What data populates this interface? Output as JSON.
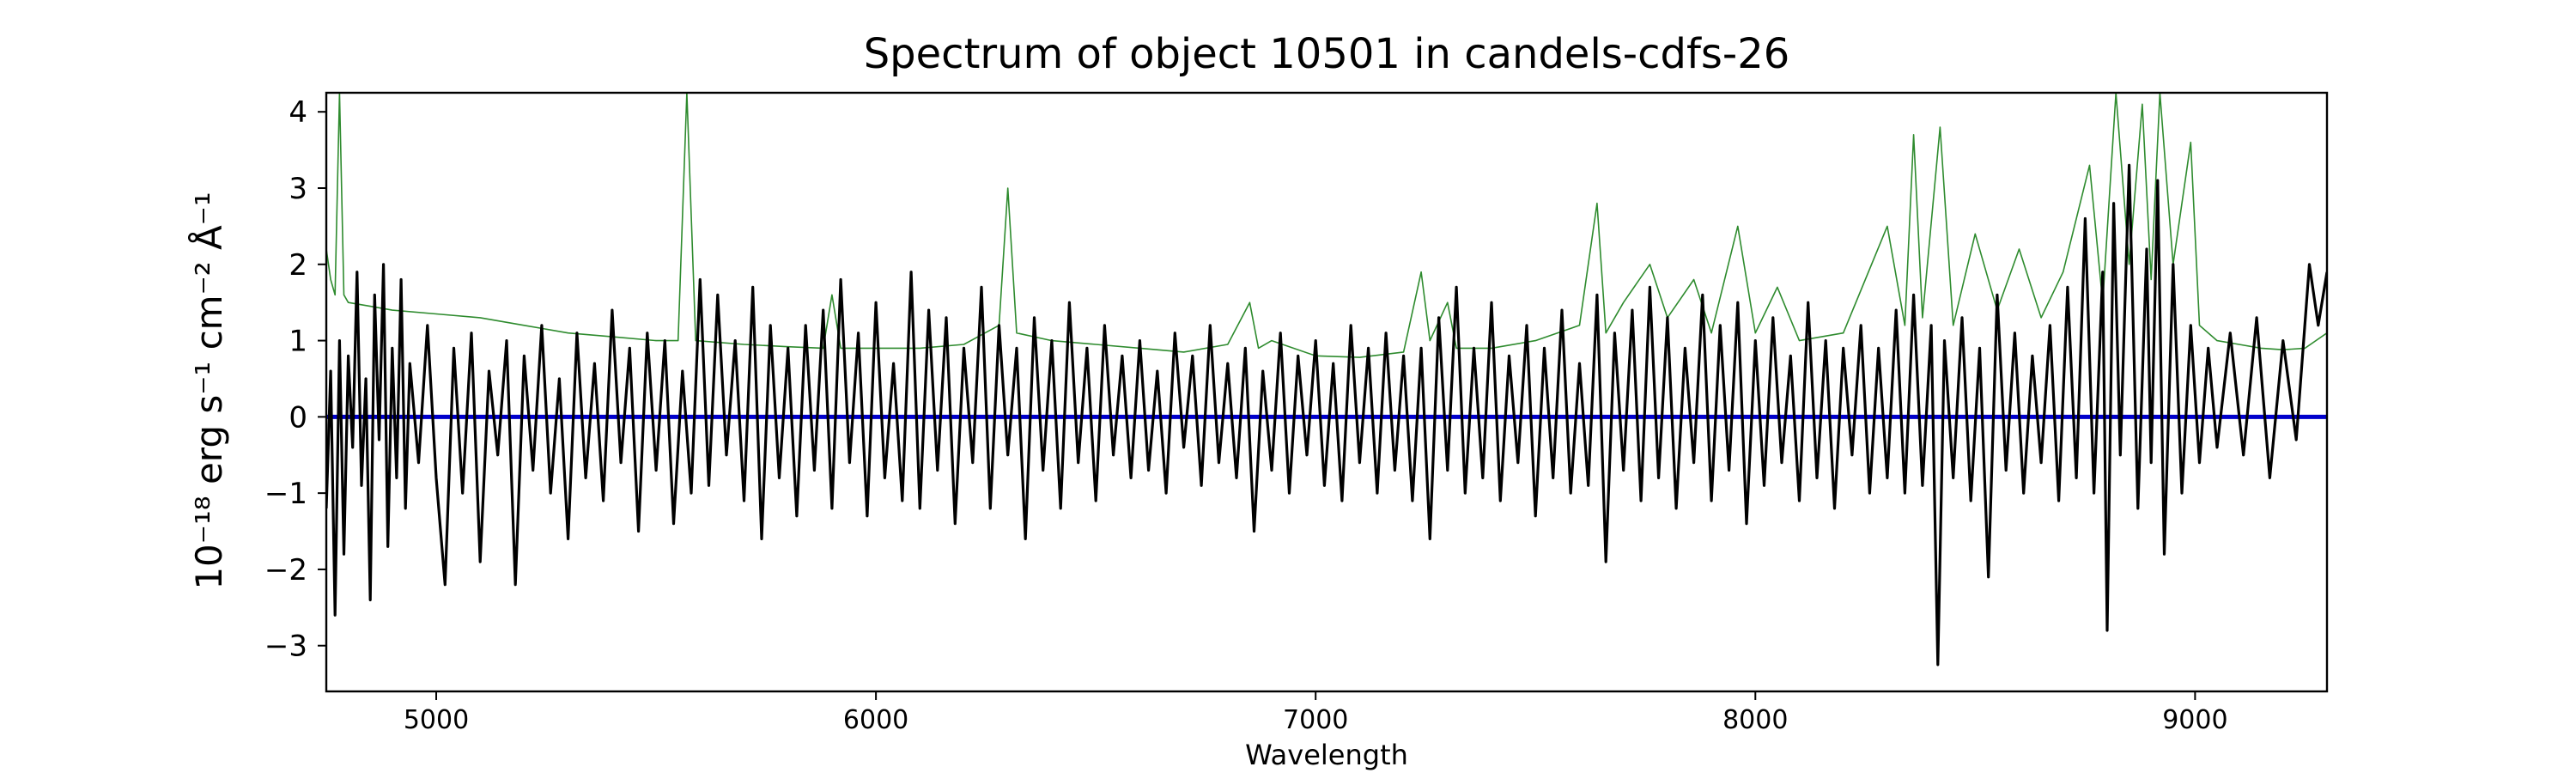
{
  "chart_data": {
    "type": "line",
    "title": "Spectrum of object 10501 in candels-cdfs-26",
    "xlabel": "Wavelength",
    "ylabel": "10⁻¹⁸ erg s⁻¹ cm⁻² Å⁻¹",
    "xlim": [
      4750,
      9300
    ],
    "ylim": [
      -3.6,
      4.25
    ],
    "x_ticks": [
      5000,
      6000,
      7000,
      8000,
      9000
    ],
    "y_ticks": [
      -3,
      -2,
      -1,
      0,
      1,
      2,
      3,
      4
    ],
    "grid": false,
    "zero_line": {
      "y": 0,
      "color": "#0000cc"
    },
    "series": [
      {
        "role": "flux",
        "color": "#000000",
        "points": [
          [
            4750,
            -1.2
          ],
          [
            4760,
            0.6
          ],
          [
            4770,
            -2.6
          ],
          [
            4780,
            1.0
          ],
          [
            4790,
            -1.8
          ],
          [
            4800,
            0.8
          ],
          [
            4810,
            -0.4
          ],
          [
            4820,
            1.9
          ],
          [
            4830,
            -0.9
          ],
          [
            4840,
            0.5
          ],
          [
            4850,
            -2.4
          ],
          [
            4860,
            1.6
          ],
          [
            4870,
            -0.3
          ],
          [
            4880,
            2.0
          ],
          [
            4890,
            -1.7
          ],
          [
            4900,
            0.9
          ],
          [
            4910,
            -0.8
          ],
          [
            4920,
            1.8
          ],
          [
            4930,
            -1.2
          ],
          [
            4940,
            0.7
          ],
          [
            4960,
            -0.6
          ],
          [
            4980,
            1.2
          ],
          [
            5000,
            -0.8
          ],
          [
            5020,
            -2.2
          ],
          [
            5040,
            0.9
          ],
          [
            5060,
            -1.0
          ],
          [
            5080,
            1.1
          ],
          [
            5100,
            -1.9
          ],
          [
            5120,
            0.6
          ],
          [
            5140,
            -0.5
          ],
          [
            5160,
            1.0
          ],
          [
            5180,
            -2.2
          ],
          [
            5200,
            0.8
          ],
          [
            5220,
            -0.7
          ],
          [
            5240,
            1.2
          ],
          [
            5260,
            -1.0
          ],
          [
            5280,
            0.5
          ],
          [
            5300,
            -1.6
          ],
          [
            5320,
            1.1
          ],
          [
            5340,
            -0.8
          ],
          [
            5360,
            0.7
          ],
          [
            5380,
            -1.1
          ],
          [
            5400,
            1.4
          ],
          [
            5420,
            -0.6
          ],
          [
            5440,
            0.9
          ],
          [
            5460,
            -1.5
          ],
          [
            5480,
            1.1
          ],
          [
            5500,
            -0.7
          ],
          [
            5520,
            1.0
          ],
          [
            5540,
            -1.4
          ],
          [
            5560,
            0.6
          ],
          [
            5580,
            -1.0
          ],
          [
            5600,
            1.8
          ],
          [
            5620,
            -0.9
          ],
          [
            5640,
            1.6
          ],
          [
            5660,
            -0.5
          ],
          [
            5680,
            1.0
          ],
          [
            5700,
            -1.1
          ],
          [
            5720,
            1.7
          ],
          [
            5740,
            -1.6
          ],
          [
            5760,
            1.2
          ],
          [
            5780,
            -0.8
          ],
          [
            5800,
            0.9
          ],
          [
            5820,
            -1.3
          ],
          [
            5840,
            1.2
          ],
          [
            5860,
            -0.7
          ],
          [
            5880,
            1.4
          ],
          [
            5900,
            -1.2
          ],
          [
            5920,
            1.8
          ],
          [
            5940,
            -0.6
          ],
          [
            5960,
            1.1
          ],
          [
            5980,
            -1.3
          ],
          [
            6000,
            1.5
          ],
          [
            6020,
            -0.8
          ],
          [
            6040,
            0.7
          ],
          [
            6060,
            -1.1
          ],
          [
            6080,
            1.9
          ],
          [
            6100,
            -1.2
          ],
          [
            6120,
            1.4
          ],
          [
            6140,
            -0.7
          ],
          [
            6160,
            1.3
          ],
          [
            6180,
            -1.4
          ],
          [
            6200,
            0.9
          ],
          [
            6220,
            -0.6
          ],
          [
            6240,
            1.7
          ],
          [
            6260,
            -1.2
          ],
          [
            6280,
            1.2
          ],
          [
            6300,
            -0.5
          ],
          [
            6320,
            0.9
          ],
          [
            6340,
            -1.6
          ],
          [
            6360,
            1.3
          ],
          [
            6380,
            -0.7
          ],
          [
            6400,
            1.0
          ],
          [
            6420,
            -1.2
          ],
          [
            6440,
            1.5
          ],
          [
            6460,
            -0.6
          ],
          [
            6480,
            0.9
          ],
          [
            6500,
            -1.1
          ],
          [
            6520,
            1.2
          ],
          [
            6540,
            -0.5
          ],
          [
            6560,
            0.8
          ],
          [
            6580,
            -0.8
          ],
          [
            6600,
            1.0
          ],
          [
            6620,
            -0.7
          ],
          [
            6640,
            0.6
          ],
          [
            6660,
            -1.0
          ],
          [
            6680,
            1.1
          ],
          [
            6700,
            -0.4
          ],
          [
            6720,
            0.8
          ],
          [
            6740,
            -0.9
          ],
          [
            6760,
            1.2
          ],
          [
            6780,
            -0.6
          ],
          [
            6800,
            0.7
          ],
          [
            6820,
            -0.8
          ],
          [
            6840,
            0.9
          ],
          [
            6860,
            -1.5
          ],
          [
            6880,
            0.6
          ],
          [
            6900,
            -0.7
          ],
          [
            6920,
            1.1
          ],
          [
            6940,
            -1.0
          ],
          [
            6960,
            0.8
          ],
          [
            6980,
            -0.5
          ],
          [
            7000,
            1.0
          ],
          [
            7020,
            -0.9
          ],
          [
            7040,
            0.7
          ],
          [
            7060,
            -1.1
          ],
          [
            7080,
            1.2
          ],
          [
            7100,
            -0.6
          ],
          [
            7120,
            0.9
          ],
          [
            7140,
            -1.0
          ],
          [
            7160,
            1.1
          ],
          [
            7180,
            -0.7
          ],
          [
            7200,
            0.8
          ],
          [
            7220,
            -1.1
          ],
          [
            7240,
            0.9
          ],
          [
            7260,
            -1.6
          ],
          [
            7280,
            1.3
          ],
          [
            7300,
            -0.7
          ],
          [
            7320,
            1.7
          ],
          [
            7340,
            -1.0
          ],
          [
            7360,
            0.9
          ],
          [
            7380,
            -0.8
          ],
          [
            7400,
            1.5
          ],
          [
            7420,
            -1.1
          ],
          [
            7440,
            0.8
          ],
          [
            7460,
            -0.6
          ],
          [
            7480,
            1.2
          ],
          [
            7500,
            -1.3
          ],
          [
            7520,
            0.9
          ],
          [
            7540,
            -0.8
          ],
          [
            7560,
            1.4
          ],
          [
            7580,
            -1.0
          ],
          [
            7600,
            0.7
          ],
          [
            7620,
            -0.9
          ],
          [
            7640,
            1.6
          ],
          [
            7660,
            -1.9
          ],
          [
            7680,
            1.1
          ],
          [
            7700,
            -0.7
          ],
          [
            7720,
            1.4
          ],
          [
            7740,
            -1.1
          ],
          [
            7760,
            1.7
          ],
          [
            7780,
            -0.8
          ],
          [
            7800,
            1.3
          ],
          [
            7820,
            -1.2
          ],
          [
            7840,
            0.9
          ],
          [
            7860,
            -0.6
          ],
          [
            7880,
            1.6
          ],
          [
            7900,
            -1.1
          ],
          [
            7920,
            1.2
          ],
          [
            7940,
            -0.7
          ],
          [
            7960,
            1.5
          ],
          [
            7980,
            -1.4
          ],
          [
            8000,
            1.0
          ],
          [
            8020,
            -0.9
          ],
          [
            8040,
            1.3
          ],
          [
            8060,
            -0.6
          ],
          [
            8080,
            0.8
          ],
          [
            8100,
            -1.1
          ],
          [
            8120,
            1.5
          ],
          [
            8140,
            -0.8
          ],
          [
            8160,
            1.0
          ],
          [
            8180,
            -1.2
          ],
          [
            8200,
            0.9
          ],
          [
            8220,
            -0.5
          ],
          [
            8240,
            1.2
          ],
          [
            8260,
            -1.0
          ],
          [
            8280,
            0.9
          ],
          [
            8300,
            -0.8
          ],
          [
            8320,
            1.4
          ],
          [
            8340,
            -1.0
          ],
          [
            8360,
            1.6
          ],
          [
            8380,
            -0.9
          ],
          [
            8400,
            1.2
          ],
          [
            8415,
            -3.25
          ],
          [
            8430,
            1.0
          ],
          [
            8450,
            -0.8
          ],
          [
            8470,
            1.3
          ],
          [
            8490,
            -1.1
          ],
          [
            8510,
            0.9
          ],
          [
            8530,
            -2.1
          ],
          [
            8550,
            1.6
          ],
          [
            8570,
            -0.7
          ],
          [
            8590,
            1.1
          ],
          [
            8610,
            -1.0
          ],
          [
            8630,
            0.8
          ],
          [
            8650,
            -0.6
          ],
          [
            8670,
            1.2
          ],
          [
            8690,
            -1.1
          ],
          [
            8710,
            1.7
          ],
          [
            8730,
            -0.8
          ],
          [
            8750,
            2.6
          ],
          [
            8770,
            -1.0
          ],
          [
            8790,
            1.9
          ],
          [
            8800,
            -2.8
          ],
          [
            8815,
            2.8
          ],
          [
            8830,
            -0.5
          ],
          [
            8850,
            3.3
          ],
          [
            8870,
            -1.2
          ],
          [
            8890,
            2.2
          ],
          [
            8900,
            -0.6
          ],
          [
            8915,
            3.1
          ],
          [
            8930,
            -1.8
          ],
          [
            8950,
            2.0
          ],
          [
            8970,
            -1.0
          ],
          [
            8990,
            1.2
          ],
          [
            9010,
            -0.6
          ],
          [
            9030,
            0.9
          ],
          [
            9050,
            -0.4
          ],
          [
            9080,
            1.1
          ],
          [
            9110,
            -0.5
          ],
          [
            9140,
            1.3
          ],
          [
            9170,
            -0.8
          ],
          [
            9200,
            1.0
          ],
          [
            9230,
            -0.3
          ],
          [
            9260,
            2.0
          ],
          [
            9280,
            1.2
          ],
          [
            9300,
            1.9
          ]
        ]
      },
      {
        "role": "error",
        "color": "#2e8b2e",
        "points": [
          [
            4750,
            2.2
          ],
          [
            4760,
            1.8
          ],
          [
            4770,
            1.6
          ],
          [
            4780,
            4.25
          ],
          [
            4790,
            1.6
          ],
          [
            4800,
            1.5
          ],
          [
            4850,
            1.45
          ],
          [
            4900,
            1.4
          ],
          [
            5000,
            1.35
          ],
          [
            5100,
            1.3
          ],
          [
            5200,
            1.2
          ],
          [
            5300,
            1.1
          ],
          [
            5400,
            1.05
          ],
          [
            5500,
            1.0
          ],
          [
            5550,
            1.0
          ],
          [
            5570,
            4.25
          ],
          [
            5590,
            1.0
          ],
          [
            5700,
            0.95
          ],
          [
            5800,
            0.92
          ],
          [
            5880,
            0.9
          ],
          [
            5900,
            1.6
          ],
          [
            5920,
            0.9
          ],
          [
            6000,
            0.9
          ],
          [
            6100,
            0.9
          ],
          [
            6200,
            0.95
          ],
          [
            6280,
            1.2
          ],
          [
            6300,
            3.0
          ],
          [
            6320,
            1.1
          ],
          [
            6400,
            1.0
          ],
          [
            6500,
            0.95
          ],
          [
            6600,
            0.9
          ],
          [
            6700,
            0.85
          ],
          [
            6800,
            0.95
          ],
          [
            6850,
            1.5
          ],
          [
            6870,
            0.9
          ],
          [
            6900,
            1.0
          ],
          [
            7000,
            0.8
          ],
          [
            7100,
            0.78
          ],
          [
            7200,
            0.85
          ],
          [
            7240,
            1.9
          ],
          [
            7260,
            1.0
          ],
          [
            7300,
            1.5
          ],
          [
            7320,
            0.9
          ],
          [
            7400,
            0.9
          ],
          [
            7500,
            1.0
          ],
          [
            7600,
            1.2
          ],
          [
            7640,
            2.8
          ],
          [
            7660,
            1.1
          ],
          [
            7700,
            1.5
          ],
          [
            7760,
            2.0
          ],
          [
            7800,
            1.3
          ],
          [
            7860,
            1.8
          ],
          [
            7900,
            1.1
          ],
          [
            7960,
            2.5
          ],
          [
            8000,
            1.1
          ],
          [
            8050,
            1.7
          ],
          [
            8100,
            1.0
          ],
          [
            8200,
            1.1
          ],
          [
            8300,
            2.5
          ],
          [
            8340,
            1.2
          ],
          [
            8360,
            3.7
          ],
          [
            8380,
            1.3
          ],
          [
            8420,
            3.8
          ],
          [
            8450,
            1.2
          ],
          [
            8500,
            2.4
          ],
          [
            8550,
            1.4
          ],
          [
            8600,
            2.2
          ],
          [
            8650,
            1.3
          ],
          [
            8700,
            1.9
          ],
          [
            8760,
            3.3
          ],
          [
            8790,
            1.5
          ],
          [
            8820,
            4.25
          ],
          [
            8850,
            2.0
          ],
          [
            8880,
            4.1
          ],
          [
            8900,
            1.8
          ],
          [
            8920,
            4.25
          ],
          [
            8950,
            2.0
          ],
          [
            8990,
            3.6
          ],
          [
            9010,
            1.2
          ],
          [
            9050,
            1.0
          ],
          [
            9100,
            0.95
          ],
          [
            9150,
            0.9
          ],
          [
            9200,
            0.88
          ],
          [
            9250,
            0.9
          ],
          [
            9300,
            1.1
          ]
        ]
      }
    ]
  }
}
